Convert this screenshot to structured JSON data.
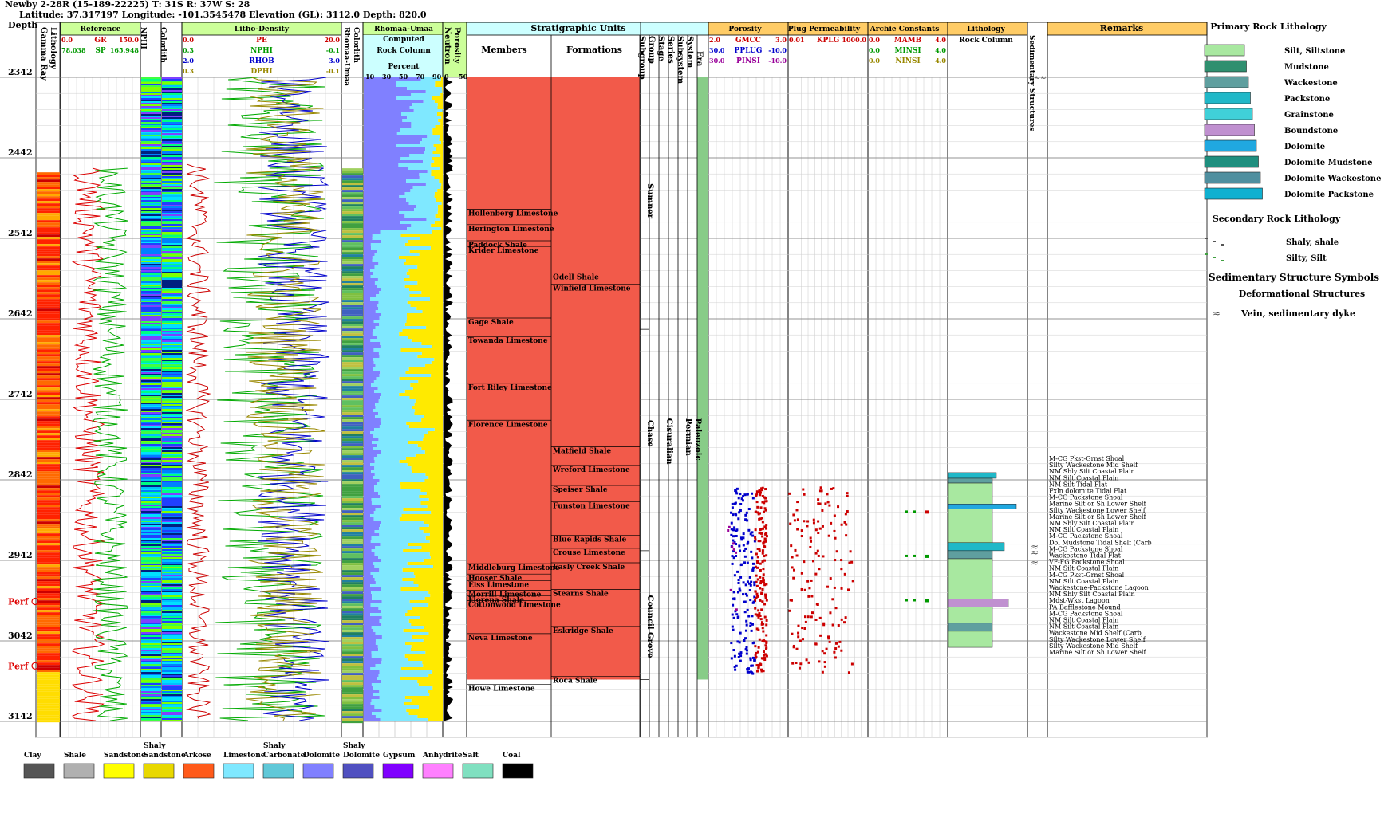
{
  "header": {
    "line1": "Newby 2-28R (15-189-22225) T: 31S R: 37W S: 28",
    "line2": "Latitude: 37.317197 Longitude: -101.3545478 Elevation (GL): 3112.0 Depth: 820.0"
  },
  "track_titles": {
    "depth": "Depth",
    "lithology": "Lithology",
    "gamma_ray": "Gamma Ray",
    "reference": "Reference",
    "nphi_colorlith": "NPHI",
    "colorlith": "Colorlith",
    "litho_density": "Litho-Density",
    "rhomaa_umaa_track": "Rhomaa-Umaa",
    "rhomaa_umaa_sub": "Computed",
    "rock_column": "Rock Column",
    "percent": "Percent",
    "porosity": "Porosity",
    "neutron": "Neutron",
    "strat_units": "Stratigraphic Units",
    "members": "Members",
    "formations": "Formations",
    "subgroup": "Subgroup",
    "group": "Group",
    "stage": "Stage",
    "series": "Series",
    "subsystem": "Subsystem",
    "system": "System",
    "era": "Era",
    "porosity_track": "Porosity",
    "plug_perm": "Plug Permeability",
    "archie": "Archie Constants",
    "lithology_track": "Lithology",
    "rock_column_2": "Rock Column",
    "sed_struct": "Sedimentary Structures",
    "remarks": "Remarks"
  },
  "curve_labels": {
    "reference": [
      {
        "min": "0.0",
        "name": "GR",
        "max": "150.0",
        "color": "#cc0000"
      },
      {
        "min": "78.038",
        "name": "SP",
        "max": "165.948",
        "color": "#009900"
      }
    ],
    "litho": [
      {
        "min": "0.0",
        "name": "PE",
        "max": "20.0",
        "color": "#cc0000"
      },
      {
        "min": "0.3",
        "name": "NPHI",
        "max": "-0.1",
        "color": "#009900"
      },
      {
        "min": "2.0",
        "name": "RHOB",
        "max": "3.0",
        "color": "#0000cc"
      },
      {
        "min": "0.3",
        "name": "DPHI",
        "max": "-0.1",
        "color": "#998800"
      }
    ],
    "porosity": [
      {
        "min": "2.0",
        "name": "GMCC",
        "max": "3.0",
        "color": "#cc0000"
      },
      {
        "min": "30.0",
        "name": "PPLUG",
        "max": "-10.0",
        "color": "#0000cc"
      },
      {
        "min": "30.0",
        "name": "PINSI",
        "max": "-10.0",
        "color": "#990099"
      }
    ],
    "perm": [
      {
        "min": "0.01",
        "name": "KPLG",
        "max": "1000.0",
        "color": "#cc0000"
      }
    ],
    "archie": [
      {
        "min": "0.0",
        "name": "MAMB",
        "max": "4.0",
        "color": "#cc0000"
      },
      {
        "min": "0.0",
        "name": "MINSI",
        "max": "4.0",
        "color": "#009900"
      },
      {
        "min": "0.0",
        "name": "NINSI",
        "max": "4.0",
        "color": "#998800"
      }
    ]
  },
  "rhomaa_scale": [
    "10",
    "30",
    "50",
    "70",
    "90"
  ],
  "neutron_scale": [
    "0",
    "50"
  ],
  "chart_data": {
    "type": "well-log",
    "depth_range": [
      2342,
      3142
    ],
    "depth_ticks": [
      2342,
      2442,
      2542,
      2642,
      2742,
      2842,
      2942,
      3042,
      3142
    ],
    "perfs": [
      {
        "label": "Perf",
        "depth": 2993
      },
      {
        "label": "Perf",
        "depth": 3073
      }
    ],
    "members": [
      {
        "name": "Hollenberg Limestone",
        "top": 2506
      },
      {
        "name": "Herington Limestone",
        "top": 2525
      },
      {
        "name": "Paddock Shale",
        "top": 2545
      },
      {
        "name": "Krider Limestone",
        "top": 2552
      },
      {
        "name": "Gage Shale",
        "top": 2641
      },
      {
        "name": "Towanda Limestone",
        "top": 2664
      },
      {
        "name": "Fort Riley Limestone",
        "top": 2722
      },
      {
        "name": "Florence Limestone",
        "top": 2768
      },
      {
        "name": "Middleburg Limestone",
        "top": 2946
      },
      {
        "name": "Hooser Shale",
        "top": 2959
      },
      {
        "name": "Eiss Limestone",
        "top": 2967
      },
      {
        "name": "Morrill Limestone",
        "top": 2979
      },
      {
        "name": "Florena Shale",
        "top": 2986
      },
      {
        "name": "Cottonwood Limestone",
        "top": 2992
      },
      {
        "name": "Neva Limestone",
        "top": 3033
      },
      {
        "name": "Howe Limestone",
        "top": 3096
      }
    ],
    "formations": [
      {
        "name": "Odell Shale",
        "top": 2585
      },
      {
        "name": "Winfield Limestone",
        "top": 2599
      },
      {
        "name": "Matfield Shale",
        "top": 2801
      },
      {
        "name": "Wreford Limestone",
        "top": 2824
      },
      {
        "name": "Speiser Shale",
        "top": 2849
      },
      {
        "name": "Funston Limestone",
        "top": 2869
      },
      {
        "name": "Blue Rapids Shale",
        "top": 2911
      },
      {
        "name": "Crouse Limestone",
        "top": 2927
      },
      {
        "name": "Easly Creek Shale",
        "top": 2945
      },
      {
        "name": "Stearns Shale",
        "top": 2978
      },
      {
        "name": "Eskridge Shale",
        "top": 3024
      },
      {
        "name": "Roca Shale",
        "top": 3086
      }
    ],
    "groups": [
      {
        "name": "Sumner",
        "top": 2342,
        "base": 2655
      },
      {
        "name": "Chase",
        "top": 2655,
        "base": 2930
      },
      {
        "name": "Council Grove",
        "top": 2930,
        "base": 3090
      }
    ],
    "series": {
      "name": "Cisuralian",
      "top": 2342,
      "base": 3090
    },
    "system": {
      "name": "Permian",
      "top": 2342,
      "base": 3090
    },
    "era": {
      "name": "Paleozoic",
      "top": 2342,
      "base": 3090
    },
    "remarks": [
      "M-CG Pkst-Grnst Shoal",
      "Silty Wackestone Mid Shelf",
      "NM Shly Silt Coastal Plain",
      "NM Silt Coastal Plain",
      "NM Silt Tidal Flat",
      "Fxln dolomite Tidal Flat",
      "M-CG Packstone Shoal",
      "Marine Silt or Sh Lower Shelf",
      "Silty Wackestone Lower Shelf",
      "Marine Silt or Sh Lower Shelf",
      "NM Shly Silt Coastal Plain",
      "NM Silt Coastal Plain",
      "M-CG Packstone Shoal",
      "Dol Mudstone Tidal Shelf (Carb",
      "M-CG Packstone Shoal",
      "Wackestone Tidal Flat",
      "VF-FG Packstone Shoal",
      "NM Silt Coastal Plain",
      "M-CG Pkst-Grnst Shoal",
      "NM Silt Coastal Plain",
      "Wackestone-Packstone Lagoon",
      "NM Shly Silt Coastal Plain",
      "Mdst-Wkst Lagoon",
      "PA Bafflestone Mound",
      "M-CG Packstone Shoal",
      "NM Silt Coastal Plain",
      "NM Silt Coastal Plain",
      "Wackestone Mid Shelf (Carb",
      "Silty Wackestone Lower Shelf",
      "Silty Wackestone Mid Shelf",
      "Marine Silt or Sh Lower Shelf"
    ]
  },
  "legend": {
    "primary_title": "Primary Rock Lithology",
    "primary": [
      {
        "name": "Silt, Siltstone",
        "color": "#a8e8a0"
      },
      {
        "name": "Mudstone",
        "color": "#2f8f6f"
      },
      {
        "name": "Wackestone",
        "color": "#5f9f9f"
      },
      {
        "name": "Packstone",
        "color": "#20b8c8"
      },
      {
        "name": "Grainstone",
        "color": "#40d0d8"
      },
      {
        "name": "Boundstone",
        "color": "#c090d0"
      },
      {
        "name": "Dolomite",
        "color": "#20a8e0"
      },
      {
        "name": "Dolomite Mudstone",
        "color": "#1f8f7f"
      },
      {
        "name": "Dolomite Wackestone",
        "color": "#4f8f9f"
      },
      {
        "name": "Dolomite Packstone",
        "color": "#10b0d0"
      }
    ],
    "secondary_title": "Secondary Rock Lithology",
    "secondary": [
      {
        "name": "Shaly, shale"
      },
      {
        "name": "Silty, Silt"
      }
    ],
    "sed_title": "Sedimentary Structure Symbols",
    "deform_title": "Deformational Structures",
    "deform_item": "Vein, sedimentary dyke"
  },
  "bottom_legend": [
    {
      "label": "Clay",
      "color": "#555555"
    },
    {
      "label": "Shale",
      "color": "#b0b0b0"
    },
    {
      "label": "Sandstone",
      "color": "#ffff00"
    },
    {
      "label": "Shaly Sandstone",
      "color": "#e8d800"
    },
    {
      "label": "Arkose",
      "color": "#ff5a1a"
    },
    {
      "label": "Limestone",
      "color": "#7fe8ff"
    },
    {
      "label": "Shaly Carbonate",
      "color": "#60c8d8"
    },
    {
      "label": "Dolomite",
      "color": "#8080ff"
    },
    {
      "label": "Shaly Dolomite",
      "color": "#5050c0"
    },
    {
      "label": "Gypsum",
      "color": "#8000ff"
    },
    {
      "label": "Anhydrite",
      "color": "#ff80ff"
    },
    {
      "label": "Salt",
      "color": "#80e0c0"
    },
    {
      "label": "Coal",
      "color": "#000000"
    }
  ]
}
